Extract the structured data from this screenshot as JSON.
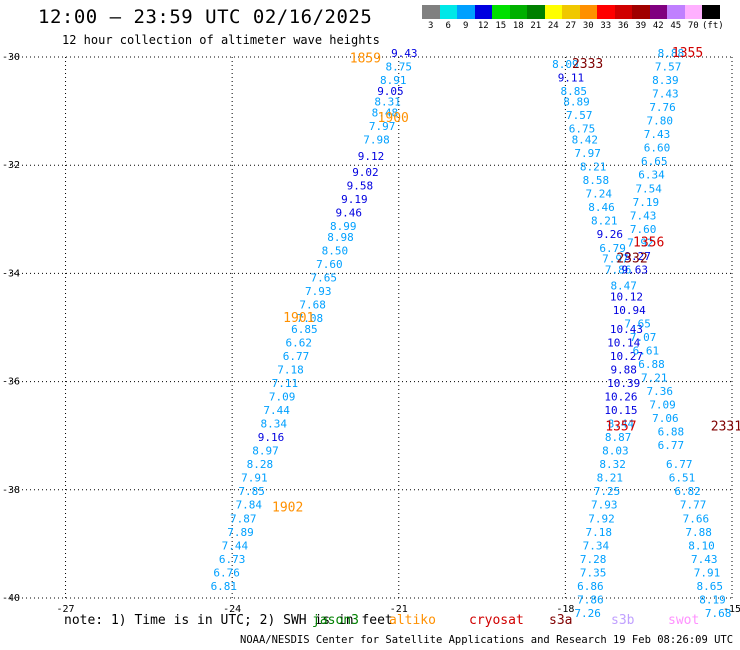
{
  "header": {
    "title": "12:00 — 23:59 UTC 02/16/2025",
    "subtitle": "12 hour collection of altimeter wave heights"
  },
  "colorbar": {
    "labels": [
      "3",
      "6",
      "9",
      "12",
      "15",
      "18",
      "21",
      "24",
      "27",
      "30",
      "33",
      "36",
      "39",
      "42",
      "45",
      "70",
      "(ft)"
    ],
    "colors": [
      "#808080",
      "#00e8e8",
      "#00a0ff",
      "#0000e0",
      "#00e000",
      "#00b000",
      "#008000",
      "#ffff00",
      "#f0c800",
      "#ff9000",
      "#ff0000",
      "#d00000",
      "#a00000",
      "#800080",
      "#c080ff",
      "#ffb0ff",
      "#000000"
    ]
  },
  "map": {
    "lon_range": [
      -28,
      -15
    ],
    "lat_range": [
      -40,
      -30
    ],
    "lon_ticks": [
      "-27",
      "-24",
      "-21",
      "-18",
      "-15"
    ],
    "lat_ticks": [
      "-30",
      "-32",
      "-34",
      "-36",
      "-38",
      "-40"
    ],
    "grid": "dotted",
    "tracks": [
      {
        "time_label": "1859",
        "label_color": "#ff9000",
        "label_pos": [
          -21.6,
          -30.1
        ]
      },
      {
        "time_label": "1900",
        "label_color": "#ff9000",
        "label_pos": [
          -21.1,
          -31.2
        ]
      },
      {
        "time_label": "1901",
        "label_color": "#ff9000",
        "label_pos": [
          -22.8,
          -34.9
        ]
      },
      {
        "time_label": "1902",
        "label_color": "#ff9000",
        "label_pos": [
          -23.0,
          -38.4
        ]
      },
      {
        "time_label": "2333",
        "label_color": "#800000",
        "label_pos": [
          -17.6,
          -30.2
        ]
      },
      {
        "time_label": "2332",
        "label_color": "#800000",
        "label_pos": [
          -16.8,
          -33.8
        ]
      },
      {
        "time_label": "2331",
        "label_color": "#800000",
        "label_pos": [
          -15.1,
          -36.9
        ]
      },
      {
        "time_label": "1355",
        "label_color": "#d00000",
        "label_pos": [
          -15.8,
          -30.0
        ]
      },
      {
        "time_label": "1356",
        "label_color": "#d00000",
        "label_pos": [
          -16.5,
          -33.5
        ]
      },
      {
        "time_label": "1357",
        "label_color": "#d00000",
        "label_pos": [
          -17.0,
          -36.9
        ]
      }
    ],
    "points": [
      {
        "v": "9.43",
        "lon": -20.9,
        "lat": -30.0
      },
      {
        "v": "8.75",
        "lon": -21.0,
        "lat": -30.25
      },
      {
        "v": "8.91",
        "lon": -21.1,
        "lat": -30.5
      },
      {
        "v": "9.05",
        "lon": -21.15,
        "lat": -30.7
      },
      {
        "v": "8.31",
        "lon": -21.2,
        "lat": -30.9
      },
      {
        "v": "8.48",
        "lon": -21.25,
        "lat": -31.1
      },
      {
        "v": "7.97",
        "lon": -21.3,
        "lat": -31.35
      },
      {
        "v": "7.98",
        "lon": -21.4,
        "lat": -31.6
      },
      {
        "v": "9.12",
        "lon": -21.5,
        "lat": -31.9
      },
      {
        "v": "9.02",
        "lon": -21.6,
        "lat": -32.2
      },
      {
        "v": "9.58",
        "lon": -21.7,
        "lat": -32.45
      },
      {
        "v": "9.19",
        "lon": -21.8,
        "lat": -32.7
      },
      {
        "v": "9.46",
        "lon": -21.9,
        "lat": -32.95
      },
      {
        "v": "8.99",
        "lon": -22.0,
        "lat": -33.2
      },
      {
        "v": "8.98",
        "lon": -22.05,
        "lat": -33.4
      },
      {
        "v": "8.50",
        "lon": -22.15,
        "lat": -33.65
      },
      {
        "v": "7.60",
        "lon": -22.25,
        "lat": -33.9
      },
      {
        "v": "7.65",
        "lon": -22.35,
        "lat": -34.15
      },
      {
        "v": "7.93",
        "lon": -22.45,
        "lat": -34.4
      },
      {
        "v": "7.68",
        "lon": -22.55,
        "lat": -34.65
      },
      {
        "v": "7.08",
        "lon": -22.6,
        "lat": -34.9
      },
      {
        "v": "6.85",
        "lon": -22.7,
        "lat": -35.1
      },
      {
        "v": "6.62",
        "lon": -22.8,
        "lat": -35.35
      },
      {
        "v": "6.77",
        "lon": -22.85,
        "lat": -35.6
      },
      {
        "v": "7.18",
        "lon": -22.95,
        "lat": -35.85
      },
      {
        "v": "7.11",
        "lon": -23.05,
        "lat": -36.1
      },
      {
        "v": "7.09",
        "lon": -23.1,
        "lat": -36.35
      },
      {
        "v": "7.44",
        "lon": -23.2,
        "lat": -36.6
      },
      {
        "v": "8.34",
        "lon": -23.25,
        "lat": -36.85
      },
      {
        "v": "9.16",
        "lon": -23.3,
        "lat": -37.1
      },
      {
        "v": "8.97",
        "lon": -23.4,
        "lat": -37.35
      },
      {
        "v": "8.28",
        "lon": -23.5,
        "lat": -37.6
      },
      {
        "v": "7.91",
        "lon": -23.6,
        "lat": -37.85
      },
      {
        "v": "7.85",
        "lon": -23.65,
        "lat": -38.1
      },
      {
        "v": "7.84",
        "lon": -23.7,
        "lat": -38.35
      },
      {
        "v": "7.87",
        "lon": -23.8,
        "lat": -38.6
      },
      {
        "v": "7.89",
        "lon": -23.85,
        "lat": -38.85
      },
      {
        "v": "7.44",
        "lon": -23.95,
        "lat": -39.1
      },
      {
        "v": "6.73",
        "lon": -24.0,
        "lat": -39.35
      },
      {
        "v": "6.76",
        "lon": -24.1,
        "lat": -39.6
      },
      {
        "v": "6.81",
        "lon": -24.15,
        "lat": -39.85
      },
      {
        "v": "8.09",
        "lon": -18.0,
        "lat": -30.2
      },
      {
        "v": "9.11",
        "lon": -17.9,
        "lat": -30.45
      },
      {
        "v": "8.85",
        "lon": -17.85,
        "lat": -30.7
      },
      {
        "v": "8.89",
        "lon": -17.8,
        "lat": -30.9
      },
      {
        "v": "7.57",
        "lon": -17.75,
        "lat": -31.15
      },
      {
        "v": "6.75",
        "lon": -17.7,
        "lat": -31.4
      },
      {
        "v": "8.42",
        "lon": -17.65,
        "lat": -31.6
      },
      {
        "v": "7.97",
        "lon": -17.6,
        "lat": -31.85
      },
      {
        "v": "8.21",
        "lon": -17.5,
        "lat": -32.1
      },
      {
        "v": "8.58",
        "lon": -17.45,
        "lat": -32.35
      },
      {
        "v": "7.24",
        "lon": -17.4,
        "lat": -32.6
      },
      {
        "v": "8.46",
        "lon": -17.35,
        "lat": -32.85
      },
      {
        "v": "8.21",
        "lon": -17.3,
        "lat": -33.1
      },
      {
        "v": "9.26",
        "lon": -17.2,
        "lat": -33.35
      },
      {
        "v": "6.79",
        "lon": -17.15,
        "lat": -33.6
      },
      {
        "v": "7.97",
        "lon": -17.1,
        "lat": -33.8
      },
      {
        "v": "7.86",
        "lon": -17.05,
        "lat": -34.0
      },
      {
        "v": "8.47",
        "lon": -16.95,
        "lat": -34.3
      },
      {
        "v": "10.12",
        "lon": -16.9,
        "lat": -34.5
      },
      {
        "v": "10.94",
        "lon": -16.85,
        "lat": -34.75
      },
      {
        "v": "10.43",
        "lon": -16.9,
        "lat": -35.1
      },
      {
        "v": "10.14",
        "lon": -16.95,
        "lat": -35.35
      },
      {
        "v": "10.27",
        "lon": -16.9,
        "lat": -35.6
      },
      {
        "v": "9.88",
        "lon": -16.95,
        "lat": -35.85
      },
      {
        "v": "10.39",
        "lon": -16.95,
        "lat": -36.1
      },
      {
        "v": "10.26",
        "lon": -17.0,
        "lat": -36.35
      },
      {
        "v": "10.15",
        "lon": -17.0,
        "lat": -36.6
      },
      {
        "v": "8.44",
        "lon": -17.0,
        "lat": -36.85
      },
      {
        "v": "8.87",
        "lon": -17.05,
        "lat": -37.1
      },
      {
        "v": "8.03",
        "lon": -17.1,
        "lat": -37.35
      },
      {
        "v": "8.32",
        "lon": -17.15,
        "lat": -37.6
      },
      {
        "v": "8.21",
        "lon": -17.2,
        "lat": -37.85
      },
      {
        "v": "7.25",
        "lon": -17.25,
        "lat": -38.1
      },
      {
        "v": "7.93",
        "lon": -17.3,
        "lat": -38.35
      },
      {
        "v": "7.92",
        "lon": -17.35,
        "lat": -38.6
      },
      {
        "v": "7.18",
        "lon": -17.4,
        "lat": -38.85
      },
      {
        "v": "7.34",
        "lon": -17.45,
        "lat": -39.1
      },
      {
        "v": "7.28",
        "lon": -17.5,
        "lat": -39.35
      },
      {
        "v": "7.35",
        "lon": -17.5,
        "lat": -39.6
      },
      {
        "v": "6.86",
        "lon": -17.55,
        "lat": -39.85
      },
      {
        "v": "7.86",
        "lon": -17.55,
        "lat": -40.1
      },
      {
        "v": "7.26",
        "lon": -17.6,
        "lat": -40.35
      },
      {
        "v": "8.88",
        "lon": -16.1,
        "lat": -30.0
      },
      {
        "v": "7.57",
        "lon": -16.15,
        "lat": -30.25
      },
      {
        "v": "8.39",
        "lon": -16.2,
        "lat": -30.5
      },
      {
        "v": "7.43",
        "lon": -16.2,
        "lat": -30.75
      },
      {
        "v": "7.76",
        "lon": -16.25,
        "lat": -31.0
      },
      {
        "v": "7.80",
        "lon": -16.3,
        "lat": -31.25
      },
      {
        "v": "7.43",
        "lon": -16.35,
        "lat": -31.5
      },
      {
        "v": "6.60",
        "lon": -16.35,
        "lat": -31.75
      },
      {
        "v": "6.65",
        "lon": -16.4,
        "lat": -32.0
      },
      {
        "v": "6.34",
        "lon": -16.45,
        "lat": -32.25
      },
      {
        "v": "7.54",
        "lon": -16.5,
        "lat": -32.5
      },
      {
        "v": "7.19",
        "lon": -16.55,
        "lat": -32.75
      },
      {
        "v": "7.43",
        "lon": -16.6,
        "lat": -33.0
      },
      {
        "v": "7.60",
        "lon": -16.6,
        "lat": -33.25
      },
      {
        "v": "7.92",
        "lon": -16.65,
        "lat": -33.5
      },
      {
        "v": "9.27",
        "lon": -16.7,
        "lat": -33.75
      },
      {
        "v": "9.63",
        "lon": -16.75,
        "lat": -34.0
      },
      {
        "v": "7.65",
        "lon": -16.7,
        "lat": -35.0
      },
      {
        "v": "7.07",
        "lon": -16.6,
        "lat": -35.25
      },
      {
        "v": "6.61",
        "lon": -16.55,
        "lat": -35.5
      },
      {
        "v": "6.88",
        "lon": -16.45,
        "lat": -35.75
      },
      {
        "v": "7.21",
        "lon": -16.4,
        "lat": -36.0
      },
      {
        "v": "7.36",
        "lon": -16.3,
        "lat": -36.25
      },
      {
        "v": "7.09",
        "lon": -16.25,
        "lat": -36.5
      },
      {
        "v": "7.06",
        "lon": -16.2,
        "lat": -36.75
      },
      {
        "v": "6.88",
        "lon": -16.1,
        "lat": -37.0
      },
      {
        "v": "6.77",
        "lon": -16.1,
        "lat": -37.25
      },
      {
        "v": "6.77",
        "lon": -15.95,
        "lat": -37.6
      },
      {
        "v": "6.51",
        "lon": -15.9,
        "lat": -37.85
      },
      {
        "v": "6.82",
        "lon": -15.8,
        "lat": -38.1
      },
      {
        "v": "7.77",
        "lon": -15.7,
        "lat": -38.35
      },
      {
        "v": "7.66",
        "lon": -15.65,
        "lat": -38.6
      },
      {
        "v": "7.88",
        "lon": -15.6,
        "lat": -38.85
      },
      {
        "v": "8.10",
        "lon": -15.55,
        "lat": -39.1
      },
      {
        "v": "7.43",
        "lon": -15.5,
        "lat": -39.35
      },
      {
        "v": "7.91",
        "lon": -15.45,
        "lat": -39.6
      },
      {
        "v": "8.65",
        "lon": -15.4,
        "lat": -39.85
      },
      {
        "v": "8.19",
        "lon": -15.35,
        "lat": -40.1
      },
      {
        "v": "7.68",
        "lon": -15.25,
        "lat": -40.35
      }
    ]
  },
  "footer": {
    "note": "note: 1) Time is in UTC; 2) SWH is in feet",
    "satellites": [
      {
        "name": "jason3",
        "color": "#008000"
      },
      {
        "name": "altiko",
        "color": "#ff9000"
      },
      {
        "name": "cryosat",
        "color": "#d00000"
      },
      {
        "name": "s3a",
        "color": "#800000"
      },
      {
        "name": "s3b",
        "color": "#c0a0ff"
      },
      {
        "name": "swot",
        "color": "#ff90ff"
      }
    ],
    "credit": "NOAA/NESDIS Center for Satellite Applications and Research   19 Feb 08:26:09 UTC 2025"
  }
}
